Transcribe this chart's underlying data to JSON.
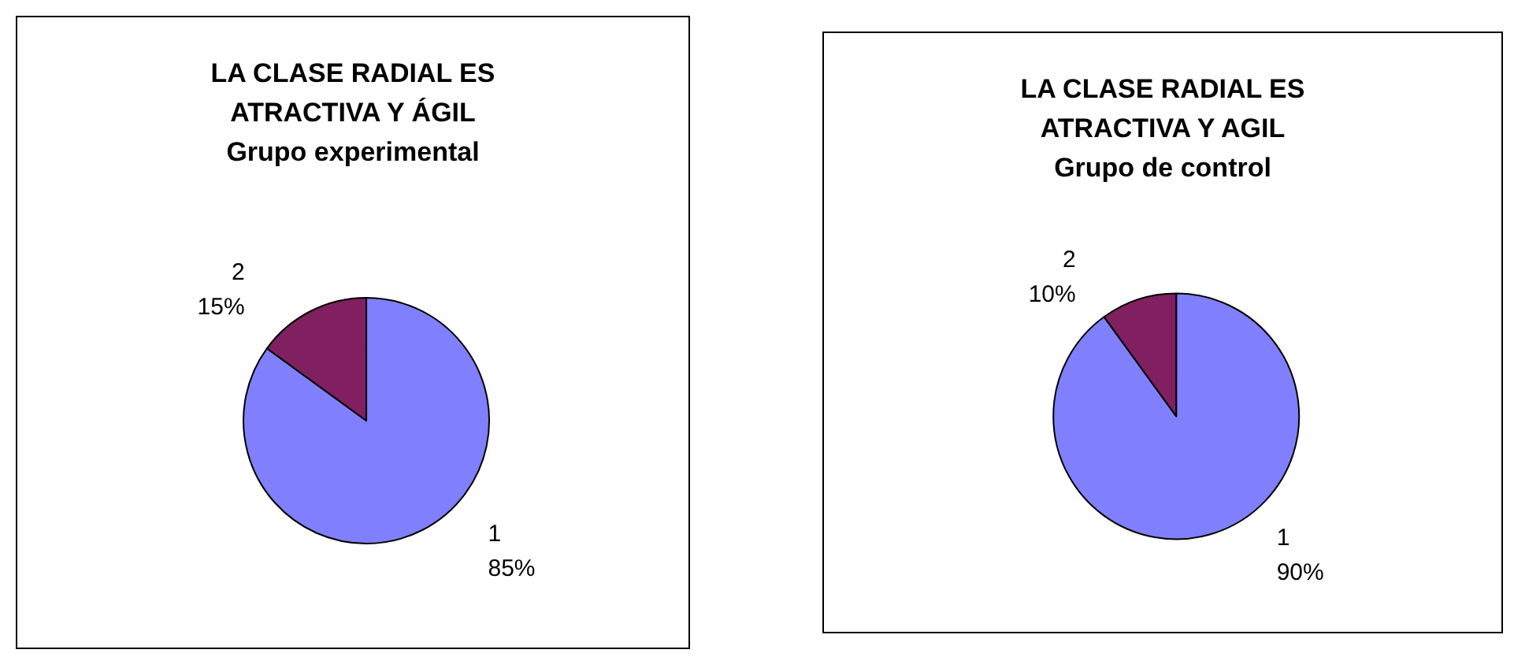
{
  "chart_data": [
    {
      "type": "pie",
      "title": "LA CLASE RADIAL ES\nATRACTIVA Y ÁGIL\nGrupo experimental",
      "categories": [
        "1",
        "2"
      ],
      "values": [
        85,
        15
      ],
      "colors": [
        "#8080ff",
        "#802060"
      ],
      "value_labels": [
        "85%",
        "15%"
      ],
      "legend": false
    },
    {
      "type": "pie",
      "title": "LA CLASE RADIAL ES\nATRACTIVA Y AGIL\nGrupo de control",
      "categories": [
        "1",
        "2"
      ],
      "values": [
        90,
        10
      ],
      "colors": [
        "#8080ff",
        "#802060"
      ],
      "value_labels": [
        "90%",
        "10%"
      ],
      "legend": false
    }
  ]
}
